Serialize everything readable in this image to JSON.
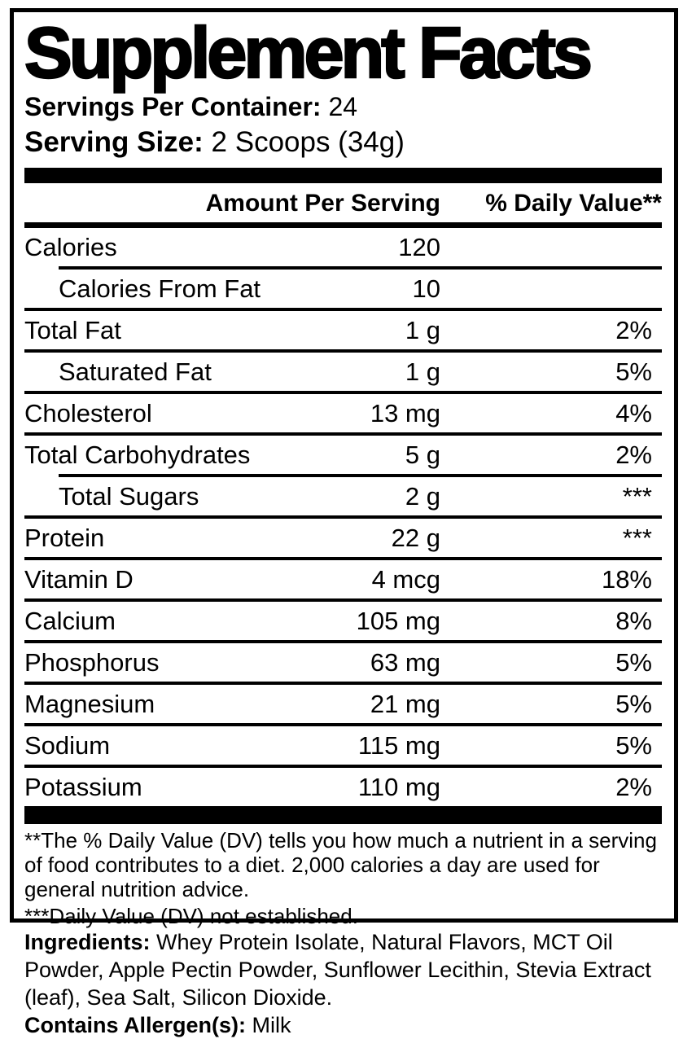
{
  "colors": {
    "text": "#000000",
    "background": "#ffffff"
  },
  "panel": {
    "title": "Supplement Facts",
    "servings_per_container": {
      "label": "Servings Per Container:",
      "value": "24"
    },
    "serving_size": {
      "label": "Serving Size:",
      "value": "2 Scoops (34g)"
    }
  },
  "table": {
    "amount_header": "Amount Per Serving",
    "dv_header": "% Daily Value**",
    "rows": [
      {
        "name": "Calories",
        "amount": "120",
        "dv": "",
        "indent": false,
        "sep_above": "none"
      },
      {
        "name": "Calories From Fat",
        "amount": "10",
        "dv": "",
        "indent": true,
        "sep_above": "indent"
      },
      {
        "name": "Total Fat",
        "amount": "1 g",
        "dv": "2%",
        "indent": false,
        "sep_above": "full"
      },
      {
        "name": "Saturated Fat",
        "amount": "1 g",
        "dv": "5%",
        "indent": true,
        "sep_above": "full"
      },
      {
        "name": "Cholesterol",
        "amount": "13 mg",
        "dv": "4%",
        "indent": false,
        "sep_above": "full"
      },
      {
        "name": "Total Carbohydrates",
        "amount": "5 g",
        "dv": "2%",
        "indent": false,
        "sep_above": "full"
      },
      {
        "name": "Total Sugars",
        "amount": "2 g",
        "dv": "***",
        "indent": true,
        "sep_above": "indent"
      },
      {
        "name": "Protein",
        "amount": "22 g",
        "dv": "***",
        "indent": false,
        "sep_above": "full"
      },
      {
        "name": "Vitamin D",
        "amount": "4 mcg",
        "dv": "18%",
        "indent": false,
        "sep_above": "full"
      },
      {
        "name": "Calcium",
        "amount": "105 mg",
        "dv": "8%",
        "indent": false,
        "sep_above": "full"
      },
      {
        "name": "Phosphorus",
        "amount": "63 mg",
        "dv": "5%",
        "indent": false,
        "sep_above": "full"
      },
      {
        "name": "Magnesium",
        "amount": "21 mg",
        "dv": "5%",
        "indent": false,
        "sep_above": "full"
      },
      {
        "name": "Sodium",
        "amount": "115 mg",
        "dv": "5%",
        "indent": false,
        "sep_above": "full"
      },
      {
        "name": "Potassium",
        "amount": "110 mg",
        "dv": "2%",
        "indent": false,
        "sep_above": "full"
      }
    ]
  },
  "footnotes": [
    "**The % Daily Value (DV) tells you how much a nutrient in a serving of food contributes to a diet. 2,000 calories a day are used for general nutrition advice.",
    "***Daily Value (DV) not established."
  ],
  "ingredients": {
    "label": "Ingredients:",
    "text": "Whey Protein Isolate, Natural Flavors, MCT Oil Powder, Apple Pectin Powder, Sunflower Lecithin, Stevia Extract (leaf), Sea Salt, Silicon Dioxide."
  },
  "allergens": {
    "label": "Contains Allergen(s):",
    "value": "Milk"
  }
}
